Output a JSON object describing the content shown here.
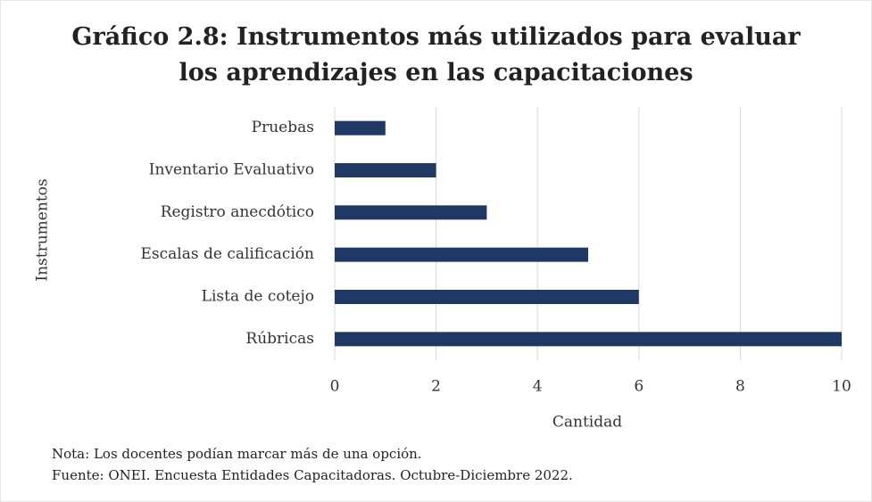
{
  "chart_data": {
    "type": "hbar",
    "title": "Gráfico 2.8: Instrumentos más utilizados para evaluar\nlos aprendizajes en las capacitaciones",
    "categories": [
      "Pruebas",
      "Inventario Evaluativo",
      "Registro anecdótico",
      "Escalas de calificación",
      "Lista de cotejo",
      "Rúbricas"
    ],
    "values": [
      1,
      2,
      3,
      5,
      6,
      10
    ],
    "color": "#203864",
    "xlim": [
      0,
      10
    ],
    "xticks": [
      0,
      2,
      4,
      6,
      8,
      10
    ],
    "grid": true,
    "x_label": "Cantidad",
    "y_label": "Instrumentos",
    "notes": [
      "Nota: Los docentes podían marcar más de una opción.",
      "Fuente: ONEI. Encuesta Entidades Capacitadoras. Octubre-Diciembre 2022."
    ]
  }
}
